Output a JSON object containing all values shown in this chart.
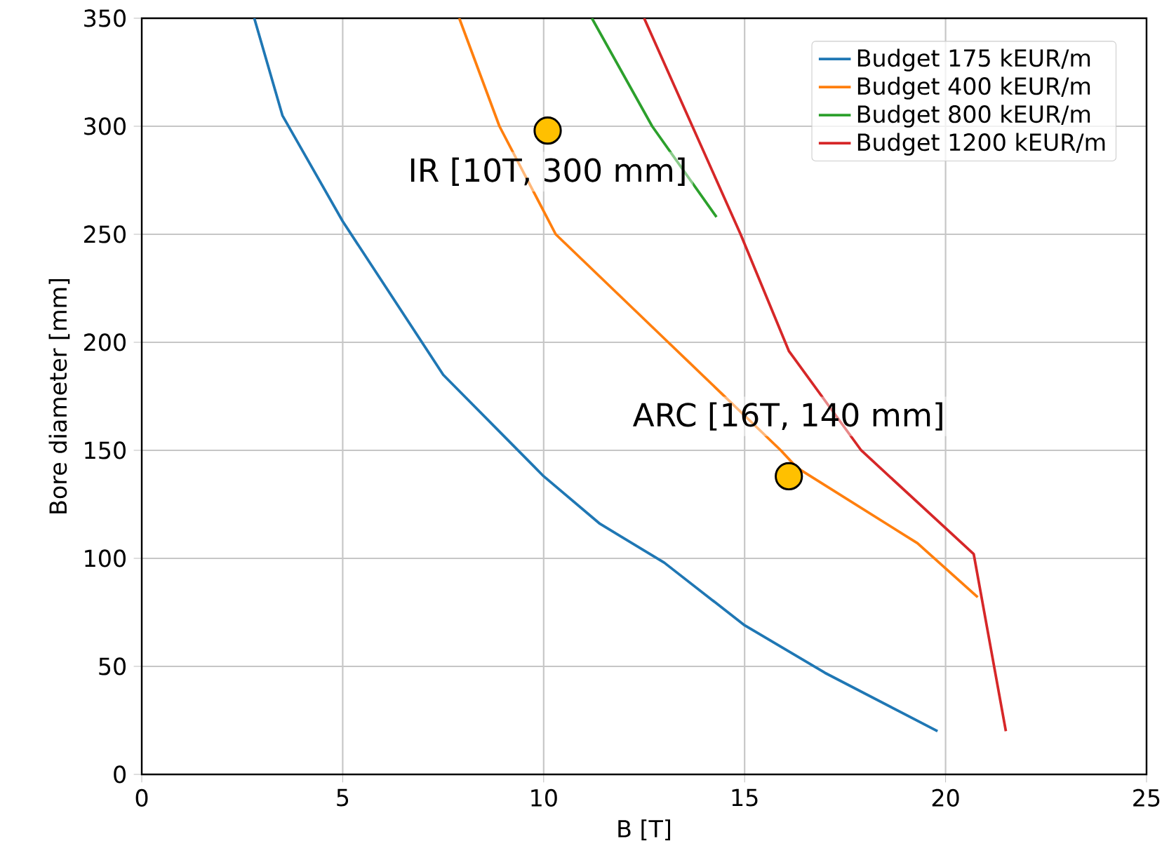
{
  "chart_data": {
    "type": "line",
    "xlabel": "B [T]",
    "ylabel": "Bore diameter [mm]",
    "xlim": [
      0,
      25
    ],
    "ylim": [
      0,
      350
    ],
    "xticks": [
      0,
      5,
      10,
      15,
      20,
      25
    ],
    "yticks": [
      0,
      50,
      100,
      150,
      200,
      250,
      300,
      350
    ],
    "grid": true,
    "legend": "top right",
    "marker": "none",
    "series": [
      {
        "name": "Budget 175 kEUR/m",
        "color": "#1f77b4",
        "x": [
          2.8,
          3.5,
          5,
          7.5,
          10,
          11.4,
          13,
          15,
          17,
          19.8
        ],
        "values": [
          350,
          305,
          256,
          185,
          138,
          116,
          98,
          69,
          47,
          20
        ]
      },
      {
        "name": "Budget 400 kEUR/m",
        "color": "#ff7f0e",
        "x": [
          7.9,
          8.9,
          10.3,
          13.1,
          15.9,
          16.3,
          19.3,
          20.8
        ],
        "values": [
          350,
          300,
          250,
          200,
          150,
          142,
          107,
          82
        ]
      },
      {
        "name": "Budget 800 kEUR/m",
        "color": "#2ca02c",
        "x": [
          11.2,
          12.7,
          14.3
        ],
        "values": [
          350,
          300,
          258
        ]
      },
      {
        "name": "Budget 1200 kEUR/m",
        "color": "#d62728",
        "x": [
          12.5,
          13.7,
          14.9,
          16.1,
          17.9,
          20.7,
          21.5
        ],
        "values": [
          350,
          300,
          250,
          196,
          150,
          102,
          20
        ]
      },
      {
        "type": "scatter",
        "color": "#ffc000",
        "marker": "circle",
        "x": [
          10.1,
          16.1
        ],
        "values": [
          298,
          138
        ]
      }
    ],
    "annotations": [
      {
        "text": "IR [10T, 300 mm]",
        "x": 10.1,
        "y": 298
      },
      {
        "text": "ARC [16T, 140 mm]",
        "x": 16.1,
        "y": 138
      }
    ]
  }
}
